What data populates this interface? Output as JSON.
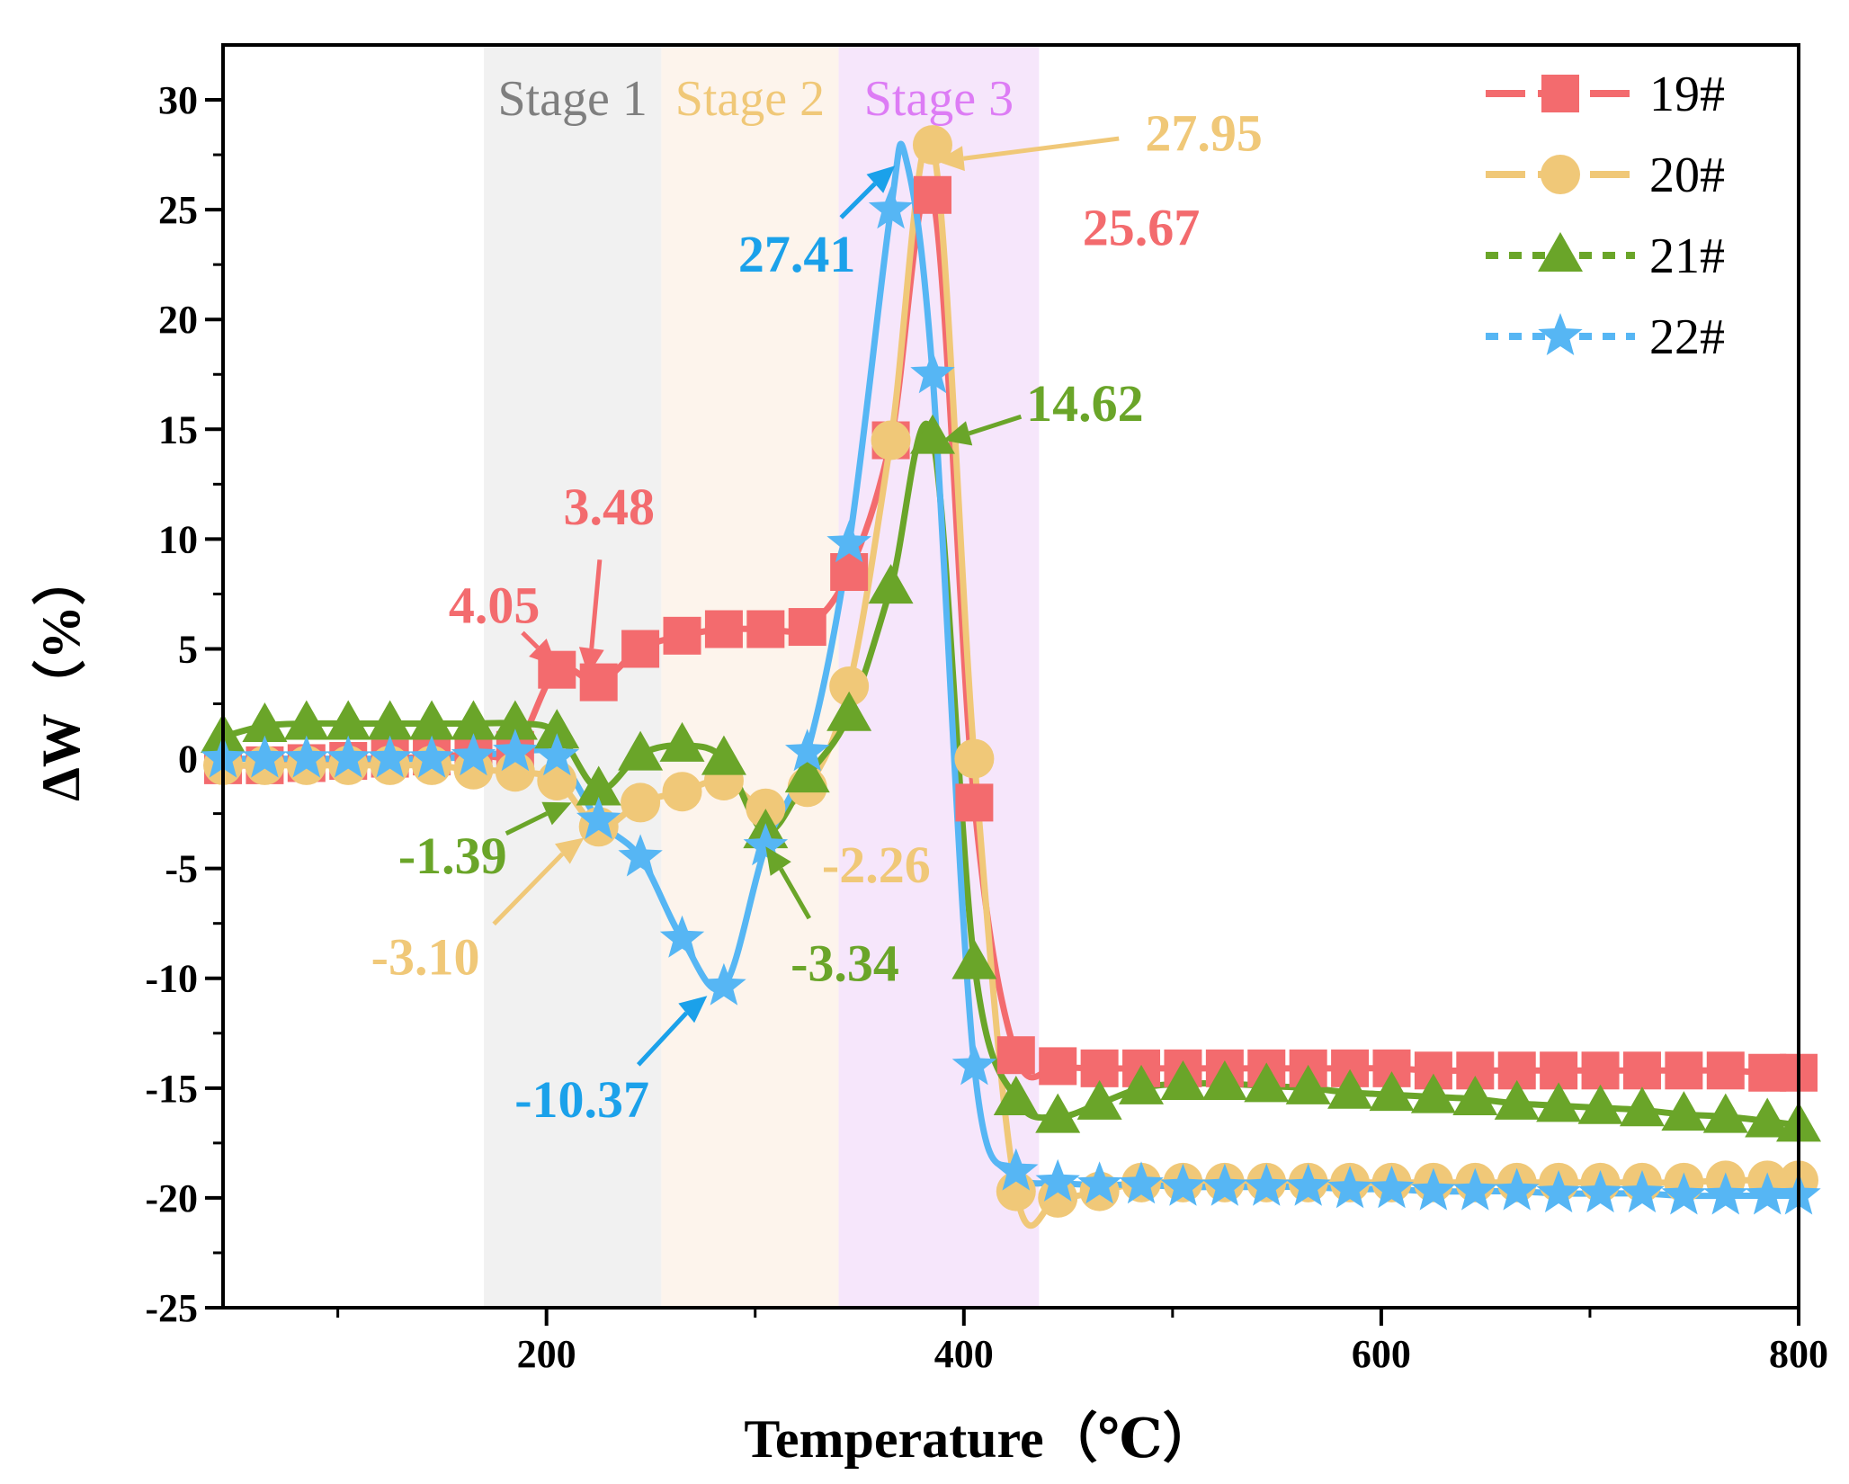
{
  "chart_data": {
    "type": "line",
    "xlabel": "Temperature（℃）",
    "ylabel": "ΔW（%）",
    "xlim": [
      45,
      800
    ],
    "ylim": [
      -25,
      32.5
    ],
    "xticks": [
      200,
      400,
      600,
      800
    ],
    "yticks": [
      -25,
      -20,
      -15,
      -10,
      -5,
      0,
      5,
      10,
      15,
      20,
      25,
      30
    ],
    "x": [
      45,
      65,
      85,
      105,
      125,
      145,
      165,
      185,
      205,
      225,
      245,
      265,
      285,
      305,
      325,
      345,
      365,
      385,
      405,
      425,
      445,
      465,
      485,
      505,
      525,
      545,
      565,
      585,
      605,
      625,
      645,
      665,
      685,
      705,
      725,
      745,
      765,
      785,
      800
    ],
    "stages": [
      {
        "label": "Stage 1",
        "x0": 170,
        "x1": 255,
        "color": "#f1f1f1",
        "text_color": "#7f7f7f"
      },
      {
        "label": "Stage 2",
        "x0": 255,
        "x1": 340,
        "color": "#fdf4ec",
        "text_color": "#f0c878"
      },
      {
        "label": "Stage 3",
        "x0": 340,
        "x1": 436,
        "color": "#f6e6fb",
        "text_color": "#dd7cf5"
      }
    ],
    "series": [
      {
        "name": "19#",
        "color": "#f36b6e",
        "marker": "square",
        "dash": "solid",
        "values": [
          -0.3,
          -0.3,
          -0.2,
          -0.1,
          0,
          0.1,
          0.2,
          0.4,
          4.05,
          3.48,
          5.0,
          5.6,
          5.9,
          5.9,
          6.0,
          8.5,
          14.5,
          25.67,
          -2.0,
          -13.5,
          -14.0,
          -14.1,
          -14.1,
          -14.1,
          -14.1,
          -14.1,
          -14.1,
          -14.1,
          -14.1,
          -14.2,
          -14.2,
          -14.2,
          -14.2,
          -14.2,
          -14.2,
          -14.2,
          -14.2,
          -14.3,
          -14.3
        ]
      },
      {
        "name": "20#",
        "color": "#f0c878",
        "marker": "circle",
        "dash": "solid",
        "values": [
          -0.3,
          -0.3,
          -0.3,
          -0.3,
          -0.3,
          -0.3,
          -0.5,
          -0.6,
          -1.0,
          -3.1,
          -2.0,
          -1.5,
          -1.0,
          -2.26,
          -1.3,
          3.3,
          14.5,
          27.95,
          0.0,
          -19.7,
          -20.0,
          -19.7,
          -19.3,
          -19.3,
          -19.3,
          -19.3,
          -19.3,
          -19.3,
          -19.3,
          -19.3,
          -19.3,
          -19.3,
          -19.3,
          -19.3,
          -19.3,
          -19.3,
          -19.2,
          -19.2,
          -19.2
        ]
      },
      {
        "name": "21#",
        "color": "#6aa529",
        "marker": "triangle",
        "dash": "dotted",
        "values": [
          1.0,
          1.5,
          1.6,
          1.6,
          1.6,
          1.6,
          1.6,
          1.6,
          1.2,
          -1.39,
          0.2,
          0.6,
          0.0,
          -3.34,
          -0.8,
          2.0,
          7.8,
          14.62,
          -9.3,
          -15.5,
          -16.3,
          -15.7,
          -15.0,
          -14.8,
          -14.8,
          -14.9,
          -15.0,
          -15.2,
          -15.3,
          -15.4,
          -15.5,
          -15.7,
          -15.8,
          -15.9,
          -16.0,
          -16.2,
          -16.3,
          -16.5,
          -16.7
        ]
      },
      {
        "name": "22#",
        "color": "#56b6f4",
        "marker": "star",
        "dash": "dotted",
        "values": [
          0.0,
          0.0,
          0.0,
          0.0,
          0.0,
          0.0,
          0.1,
          0.3,
          0.1,
          -2.8,
          -4.5,
          -8.2,
          -10.37,
          -4.0,
          0.3,
          9.8,
          25.0,
          17.5,
          -14.0,
          -18.8,
          -19.3,
          -19.4,
          -19.4,
          -19.5,
          -19.5,
          -19.5,
          -19.5,
          -19.6,
          -19.6,
          -19.7,
          -19.7,
          -19.7,
          -19.8,
          -19.8,
          -19.8,
          -19.9,
          -19.9,
          -19.9,
          -19.9
        ]
      }
    ],
    "smooth_peak": {
      "series": "22#",
      "x": 372,
      "y": 27.41
    },
    "annotations": [
      {
        "text": "27.95",
        "color": "#f0c878",
        "x": 515,
        "y": 28.5,
        "tx": 387,
        "ty": 27.2
      },
      {
        "text": "25.67",
        "color": "#f36b6e",
        "x": 485,
        "y": 24.2,
        "tx": null,
        "ty": null
      },
      {
        "text": "27.41",
        "color": "#1ba1ea",
        "x": 320,
        "y": 23.0,
        "tx": 367,
        "ty": 27.0
      },
      {
        "text": "14.62",
        "color": "#6aa529",
        "x": 458,
        "y": 16.2,
        "tx": 390,
        "ty": 14.5
      },
      {
        "text": "3.48",
        "color": "#f36b6e",
        "x": 230,
        "y": 11.5,
        "tx": 220,
        "ty": 3.8
      },
      {
        "text": "4.05",
        "color": "#f36b6e",
        "x": 175,
        "y": 7.0,
        "tx": 205,
        "ty": 4.2
      },
      {
        "text": "-1.39",
        "color": "#6aa529",
        "x": 155,
        "y": -4.4,
        "tx": 212,
        "ty": -2.0
      },
      {
        "text": "-2.26",
        "color": "#f0c878",
        "x": 358,
        "y": -4.8,
        "tx": null,
        "ty": null
      },
      {
        "text": "-3.10",
        "color": "#f0c878",
        "x": 142,
        "y": -9.0,
        "tx": 218,
        "ty": -3.6
      },
      {
        "text": "-3.34",
        "color": "#6aa529",
        "x": 343,
        "y": -9.3,
        "tx": 305,
        "ty": -4.0
      },
      {
        "text": "-10.37",
        "color": "#1ba1ea",
        "x": 217,
        "y": -15.5,
        "tx": 277,
        "ty": -10.8
      }
    ],
    "legend": {
      "position": "top-right"
    }
  }
}
